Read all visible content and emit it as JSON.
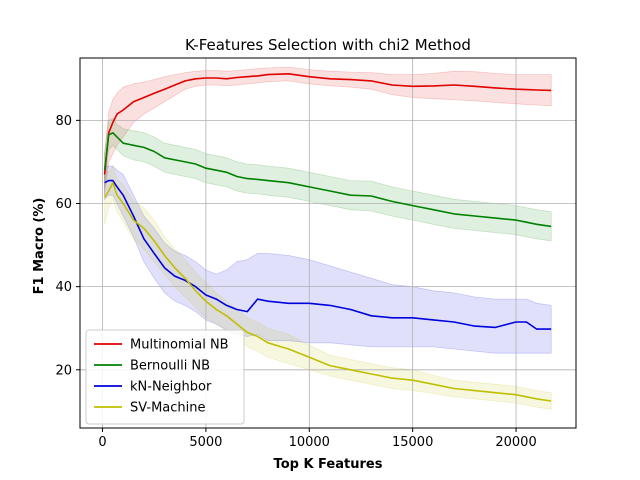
{
  "chart_data": {
    "type": "line",
    "title": "K-Features Selection with chi2 Method",
    "xlabel": "Top K Features",
    "ylabel": "F1 Macro (%)",
    "xlim": [
      -1090,
      22900
    ],
    "ylim": [
      6,
      95
    ],
    "xticks": [
      0,
      5000,
      10000,
      15000,
      20000
    ],
    "yticks": [
      20,
      40,
      60,
      80
    ],
    "grid": true,
    "legend_position": "lower-left",
    "bands": "shaded variability band around each series",
    "x": [
      100,
      300,
      500,
      700,
      1000,
      1500,
      2000,
      2500,
      3000,
      3500,
      4000,
      4500,
      5000,
      5500,
      6000,
      6500,
      7000,
      7500,
      8000,
      9000,
      10000,
      11000,
      12000,
      13000,
      14000,
      15000,
      16000,
      17000,
      18000,
      19000,
      20000,
      20500,
      21000,
      21700
    ],
    "series": [
      {
        "name": "Multinomial NB",
        "color": "#e00000",
        "values": [
          67,
          77,
          79.5,
          81.5,
          82.5,
          84.5,
          85.5,
          86.5,
          87.5,
          88.5,
          89.5,
          90,
          90.2,
          90.2,
          90,
          90.3,
          90.5,
          90.7,
          91,
          91.2,
          90.5,
          90,
          89.8,
          89.5,
          88.5,
          88.2,
          88.3,
          88.5,
          88.2,
          87.8,
          87.5,
          87.4,
          87.3,
          87.2
        ],
        "band": [
          [
            62,
            70,
            72,
            74,
            76,
            79.5,
            81.5,
            83,
            84.5,
            86,
            87.5,
            88.2,
            88.5,
            88.5,
            88.3,
            88.5,
            88.8,
            89,
            89.3,
            89.5,
            88.8,
            88.3,
            88,
            87.5,
            86.2,
            85.5,
            85.2,
            85,
            84.7,
            84.3,
            84,
            83.8,
            83.7,
            83.5
          ],
          [
            72,
            82,
            85,
            86.5,
            88,
            88.8,
            89.2,
            89.8,
            90.5,
            91,
            91.5,
            91.8,
            92,
            92,
            91.8,
            92,
            92.2,
            92.4,
            92.6,
            92.8,
            92.2,
            91.8,
            91.6,
            91.5,
            91,
            91,
            91.3,
            91.8,
            91.7,
            91.3,
            91,
            91,
            91,
            91
          ]
        ]
      },
      {
        "name": "Bernoulli NB",
        "color": "#008000",
        "values": [
          68,
          76.5,
          77,
          76,
          74.5,
          74,
          73.5,
          72.5,
          71,
          70.5,
          70,
          69.5,
          68.5,
          68,
          67.5,
          66.5,
          66,
          65.8,
          65.5,
          65,
          64,
          63,
          62,
          61.8,
          60.5,
          59.5,
          58.5,
          57.5,
          57,
          56.5,
          56,
          55.5,
          55,
          54.5
        ],
        "band": [
          [
            64,
            73,
            74,
            73,
            71.5,
            70.5,
            70,
            69,
            67.5,
            67,
            66.5,
            66,
            65,
            64.5,
            64,
            63,
            62.5,
            62.3,
            62,
            61.5,
            60.5,
            59.5,
            58.5,
            58.2,
            57,
            56,
            55,
            54,
            53.5,
            53,
            52.5,
            52,
            51.5,
            51
          ],
          [
            72,
            80,
            80.5,
            79,
            78,
            77.5,
            77,
            76,
            74.5,
            74,
            73.5,
            73,
            72,
            71.5,
            71,
            70,
            69.5,
            69.3,
            69,
            68.5,
            67.5,
            66.5,
            65.5,
            65.4,
            64,
            63,
            62,
            61,
            60.5,
            60,
            59.5,
            59,
            58.5,
            58
          ]
        ]
      },
      {
        "name": "kN-Neighbor",
        "color": "#0000dd",
        "values": [
          65,
          65.5,
          65.5,
          64,
          62,
          57,
          51.5,
          48,
          44.5,
          42.5,
          41.5,
          40,
          38,
          37,
          35.5,
          34.5,
          34,
          37,
          36.5,
          36,
          36,
          35.5,
          34.5,
          33,
          32.5,
          32.5,
          32,
          31.5,
          30.5,
          30.2,
          31.5,
          31.5,
          29.8,
          29.8
        ],
        "band": [
          [
            61,
            62,
            62,
            60,
            57,
            52,
            46,
            42,
            38.5,
            36.5,
            35.5,
            34,
            32,
            31,
            29.5,
            28.5,
            28,
            28.5,
            27,
            27,
            26.5,
            26.5,
            26,
            25.5,
            25.5,
            25.5,
            25.5,
            25,
            24.5,
            24,
            24,
            24,
            24,
            24
          ],
          [
            69,
            69,
            69,
            68,
            67,
            62,
            57,
            54,
            50.5,
            48.5,
            47.5,
            46,
            44,
            43,
            44,
            46,
            46.5,
            48,
            48,
            47.5,
            46.5,
            45,
            43.5,
            42,
            40.5,
            40,
            39,
            38.5,
            37.5,
            37,
            37,
            37,
            36,
            35.5
          ]
        ]
      },
      {
        "name": "SV-Machine",
        "color": "#bfbf00",
        "values": [
          61.5,
          63,
          65,
          62,
          60,
          56,
          54,
          51,
          47.5,
          44.5,
          42,
          39,
          36.5,
          34.5,
          33,
          31,
          29,
          28,
          26.5,
          25,
          23,
          21,
          20,
          19,
          18,
          17.5,
          16.5,
          15.5,
          15,
          14.5,
          14,
          13.5,
          13,
          12.5
        ],
        "band": [
          [
            55,
            59,
            61,
            58,
            55.5,
            51.5,
            49,
            46,
            43,
            40,
            37.5,
            35,
            32.5,
            31,
            29.5,
            27.5,
            25.5,
            24.5,
            23,
            21.5,
            20,
            18.5,
            17.5,
            16.5,
            15.5,
            15,
            14.3,
            13.5,
            13,
            12.5,
            12,
            11.5,
            11,
            10.5
          ],
          [
            68,
            67.5,
            69,
            66,
            64.5,
            60.5,
            59,
            56,
            52,
            49,
            46.5,
            43.5,
            41,
            38.5,
            36.5,
            34.5,
            32.5,
            31.5,
            30,
            28.5,
            26,
            23.5,
            22.5,
            21.5,
            20.5,
            20,
            18.7,
            17.5,
            17,
            16.5,
            16,
            15.5,
            15,
            14.5
          ]
        ]
      }
    ]
  }
}
